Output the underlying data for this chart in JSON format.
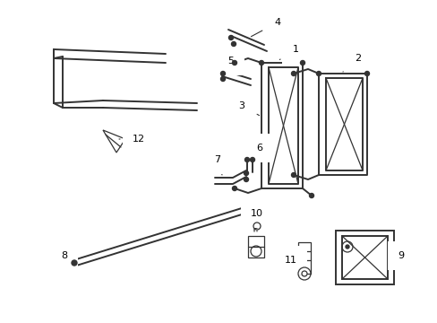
{
  "background_color": "#ffffff",
  "line_color": "#333333",
  "label_color": "#000000",
  "fig_width": 4.89,
  "fig_height": 3.6,
  "dpi": 100
}
